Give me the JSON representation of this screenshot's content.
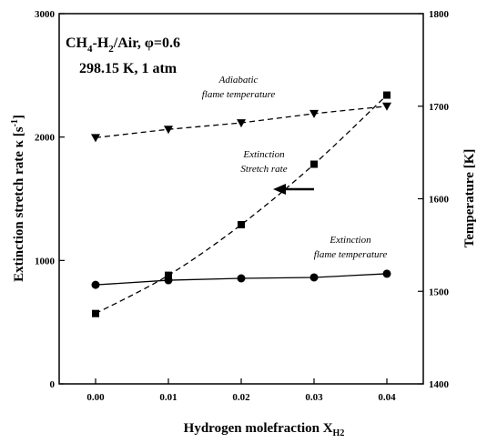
{
  "chart_data": {
    "type": "line",
    "x": [
      0.0,
      0.01,
      0.02,
      0.03,
      0.04
    ],
    "x_tick_labels": [
      "0.00",
      "0.01",
      "0.02",
      "0.03",
      "0.04"
    ],
    "xlim": [
      -0.005,
      0.045
    ],
    "xlabel": "Hydrogen molefraction X",
    "xlabel_sub": "H2",
    "ylabel_left": "Extinction stretch rate κ [s",
    "ylabel_left_sup": "-1",
    "ylabel_left_end": "]",
    "ylim_left": [
      0,
      3000
    ],
    "y_left_ticks": [
      "0",
      "1000",
      "2000",
      "3000"
    ],
    "ylabel_right": "Temperature [K]",
    "ylim_right": [
      1400,
      1800
    ],
    "y_right_ticks": [
      "1400",
      "1500",
      "1600",
      "1700",
      "1800"
    ],
    "conditions_line1": "CH4-H2/Air, φ=0.6",
    "conditions_line2": "298.15 K, 1 atm",
    "series": [
      {
        "name": "Adiabatic flame temperature",
        "label_lines": [
          "Adiabatic",
          "flame temperature"
        ],
        "axis": "right",
        "marker": "triangle-down",
        "linestyle": "dashed",
        "values": [
          1666,
          1675,
          1682,
          1692,
          1700
        ]
      },
      {
        "name": "Extinction Stretch rate",
        "label_lines": [
          "Extinction",
          "Stretch rate"
        ],
        "axis": "left",
        "marker": "square",
        "linestyle": "dashed",
        "values": [
          570,
          880,
          1290,
          1780,
          2340
        ]
      },
      {
        "name": "Extinction flame temperature",
        "label_lines": [
          "Extinction",
          "flame temperature"
        ],
        "axis": "right",
        "marker": "circle",
        "linestyle": "solid",
        "values": [
          1507,
          1512,
          1514,
          1515,
          1519
        ]
      }
    ],
    "grid": false
  }
}
